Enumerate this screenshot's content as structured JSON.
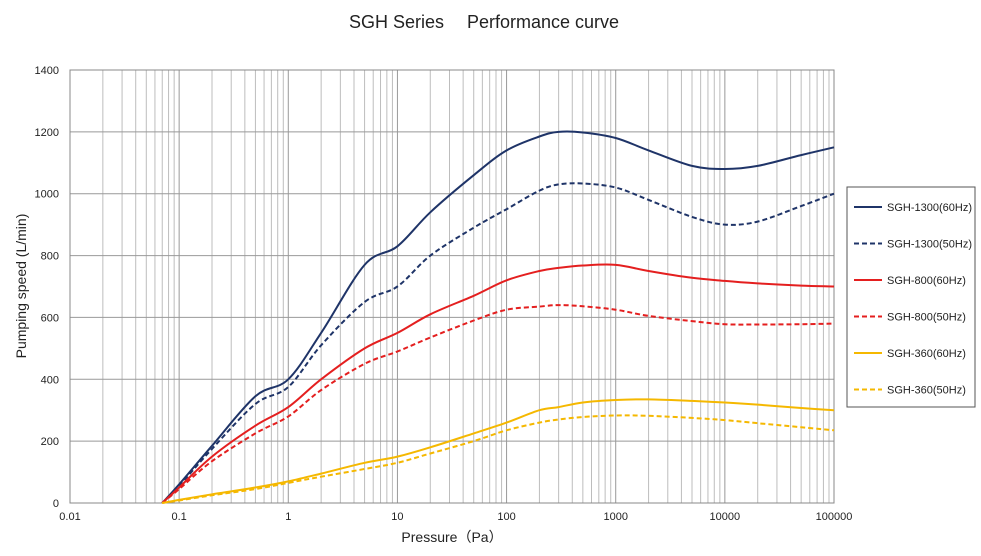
{
  "chart_data": {
    "type": "line",
    "title": "SGH Series　 Performance curve",
    "xlabel": "Pressure（Pa）",
    "ylabel": "Pumping speed (L/min)",
    "x_scale": "log",
    "xlim": [
      0.01,
      100000
    ],
    "ylim": [
      0,
      1400
    ],
    "x_ticks": [
      "0.01",
      "0.1",
      "1",
      "10",
      "100",
      "1000",
      "10000",
      "100000"
    ],
    "y_ticks": [
      "0",
      "200",
      "400",
      "600",
      "800",
      "1000",
      "1200",
      "1400"
    ],
    "grid": true,
    "legend_position": "right",
    "series": [
      {
        "name": "SGH-1300(60Hz)",
        "color": "#1f3468",
        "dash": "solid",
        "points": [
          [
            0.07,
            0
          ],
          [
            0.1,
            60
          ],
          [
            0.2,
            185
          ],
          [
            0.5,
            345
          ],
          [
            1,
            400
          ],
          [
            2,
            550
          ],
          [
            5,
            770
          ],
          [
            10,
            830
          ],
          [
            20,
            940
          ],
          [
            50,
            1060
          ],
          [
            100,
            1140
          ],
          [
            200,
            1185
          ],
          [
            300,
            1200
          ],
          [
            500,
            1198
          ],
          [
            1000,
            1180
          ],
          [
            2000,
            1140
          ],
          [
            5000,
            1090
          ],
          [
            10000,
            1080
          ],
          [
            20000,
            1090
          ],
          [
            50000,
            1125
          ],
          [
            100000,
            1150
          ]
        ]
      },
      {
        "name": "SGH-1300(50Hz)",
        "color": "#1f3468",
        "dash": "dashed",
        "points": [
          [
            0.07,
            0
          ],
          [
            0.1,
            55
          ],
          [
            0.2,
            175
          ],
          [
            0.5,
            320
          ],
          [
            1,
            375
          ],
          [
            2,
            510
          ],
          [
            5,
            650
          ],
          [
            10,
            700
          ],
          [
            20,
            800
          ],
          [
            50,
            890
          ],
          [
            100,
            950
          ],
          [
            200,
            1010
          ],
          [
            300,
            1030
          ],
          [
            500,
            1033
          ],
          [
            1000,
            1020
          ],
          [
            2000,
            980
          ],
          [
            5000,
            925
          ],
          [
            10000,
            900
          ],
          [
            20000,
            910
          ],
          [
            50000,
            960
          ],
          [
            100000,
            1000
          ]
        ]
      },
      {
        "name": "SGH-800(60Hz)",
        "color": "#e41f1f",
        "dash": "solid",
        "points": [
          [
            0.07,
            0
          ],
          [
            0.1,
            50
          ],
          [
            0.2,
            150
          ],
          [
            0.5,
            250
          ],
          [
            1,
            310
          ],
          [
            2,
            400
          ],
          [
            5,
            500
          ],
          [
            10,
            550
          ],
          [
            20,
            610
          ],
          [
            50,
            670
          ],
          [
            100,
            720
          ],
          [
            200,
            750
          ],
          [
            300,
            760
          ],
          [
            500,
            768
          ],
          [
            1000,
            770
          ],
          [
            2000,
            750
          ],
          [
            5000,
            728
          ],
          [
            10000,
            718
          ],
          [
            20000,
            710
          ],
          [
            50000,
            703
          ],
          [
            100000,
            700
          ]
        ]
      },
      {
        "name": "SGH-800(50Hz)",
        "color": "#e41f1f",
        "dash": "dashed",
        "points": [
          [
            0.07,
            0
          ],
          [
            0.1,
            45
          ],
          [
            0.2,
            135
          ],
          [
            0.5,
            225
          ],
          [
            1,
            280
          ],
          [
            2,
            365
          ],
          [
            5,
            450
          ],
          [
            10,
            490
          ],
          [
            20,
            535
          ],
          [
            50,
            590
          ],
          [
            100,
            625
          ],
          [
            200,
            635
          ],
          [
            300,
            640
          ],
          [
            500,
            636
          ],
          [
            1000,
            625
          ],
          [
            2000,
            605
          ],
          [
            5000,
            588
          ],
          [
            10000,
            578
          ],
          [
            20000,
            577
          ],
          [
            50000,
            578
          ],
          [
            100000,
            580
          ]
        ]
      },
      {
        "name": "SGH-360(60Hz)",
        "color": "#f5b800",
        "dash": "solid",
        "points": [
          [
            0.07,
            0
          ],
          [
            0.1,
            10
          ],
          [
            0.2,
            28
          ],
          [
            0.5,
            50
          ],
          [
            1,
            70
          ],
          [
            2,
            95
          ],
          [
            5,
            130
          ],
          [
            10,
            150
          ],
          [
            20,
            180
          ],
          [
            50,
            225
          ],
          [
            100,
            260
          ],
          [
            200,
            300
          ],
          [
            300,
            310
          ],
          [
            500,
            325
          ],
          [
            1000,
            333
          ],
          [
            2000,
            335
          ],
          [
            5000,
            330
          ],
          [
            10000,
            325
          ],
          [
            20000,
            318
          ],
          [
            50000,
            307
          ],
          [
            100000,
            300
          ]
        ]
      },
      {
        "name": "SGH-360(50Hz)",
        "color": "#f5b800",
        "dash": "dashed",
        "points": [
          [
            0.07,
            0
          ],
          [
            0.1,
            8
          ],
          [
            0.2,
            25
          ],
          [
            0.5,
            45
          ],
          [
            1,
            65
          ],
          [
            2,
            85
          ],
          [
            5,
            110
          ],
          [
            10,
            130
          ],
          [
            20,
            160
          ],
          [
            50,
            200
          ],
          [
            100,
            235
          ],
          [
            200,
            260
          ],
          [
            300,
            270
          ],
          [
            500,
            278
          ],
          [
            1000,
            283
          ],
          [
            2000,
            282
          ],
          [
            5000,
            275
          ],
          [
            10000,
            268
          ],
          [
            20000,
            258
          ],
          [
            50000,
            245
          ],
          [
            100000,
            235
          ]
        ]
      }
    ]
  }
}
